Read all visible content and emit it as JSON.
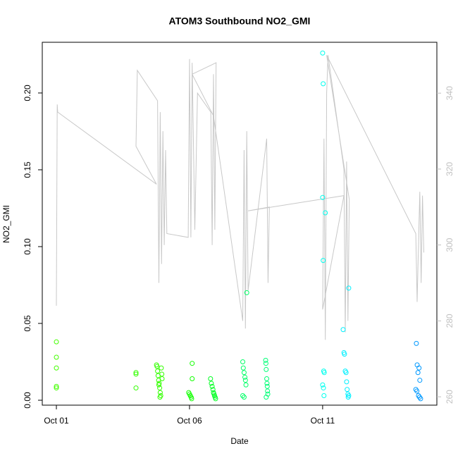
{
  "chart_data": {
    "type": "scatter",
    "title": "ATOM3 Southbound NO2_GMI",
    "x_label": "Date",
    "y_label": "NO2_GMI",
    "xlim": [
      -0.53,
      14.29
    ],
    "xticks": [
      {
        "value": 0,
        "label": "Oct 01"
      },
      {
        "value": 5,
        "label": "Oct 06"
      },
      {
        "value": 10,
        "label": "Oct 11"
      }
    ],
    "ylim": [
      -0.0032,
      0.233
    ],
    "yticks": [
      {
        "value": 0,
        "label": "0.00"
      },
      {
        "value": 0.05,
        "label": "0.05"
      },
      {
        "value": 0.1,
        "label": "0.10"
      },
      {
        "value": 0.15,
        "label": "0.15"
      },
      {
        "value": 0.2,
        "label": "0.20"
      }
    ],
    "y2lim": [
      257.8,
      353.4
    ],
    "y2ticks": [
      260,
      280,
      300,
      320,
      340
    ],
    "y2_color": "#c0c0c0",
    "x": [
      0,
      0,
      0,
      0,
      0,
      2.99,
      2.99,
      2.99,
      3.76,
      3.78,
      3.8,
      3.82,
      3.84,
      3.86,
      3.88,
      3.9,
      3.92,
      3.94,
      3.96,
      3.97,
      3.85,
      3.89,
      4.97,
      5.0,
      5.03,
      5.06,
      5.08,
      5.1,
      5.1,
      5.79,
      5.82,
      5.85,
      5.88,
      5.9,
      5.92,
      5.94,
      5.96,
      5.98,
      7.0,
      7.02,
      7.05,
      7.08,
      7.1,
      7.12,
      7.0,
      7.05,
      7.15,
      7.86,
      7.87,
      7.88,
      7.9,
      7.91,
      7.92,
      7.93,
      7.94,
      7.88,
      10.0,
      10.02,
      10.0,
      10.1,
      10.02,
      10.04,
      10.06,
      10.0,
      10.03,
      10.05,
      10.77,
      10.8,
      10.82,
      10.85,
      10.88,
      10.9,
      10.92,
      10.95,
      10.98,
      10.96,
      10.98,
      13.52,
      13.55,
      13.62,
      13.58,
      13.65,
      13.5,
      13.54,
      13.6,
      13.64,
      13.68
    ],
    "values": [
      0.038,
      0.028,
      0.021,
      0.009,
      0.008,
      0.018,
      0.017,
      0.008,
      0.023,
      0.022,
      0.019,
      0.016,
      0.013,
      0.011,
      0.008,
      0.005,
      0.003,
      0.021,
      0.017,
      0.014,
      0.01,
      0.002,
      0.005,
      0.004,
      0.003,
      0.002,
      0.001,
      0.024,
      0.014,
      0.014,
      0.011,
      0.009,
      0.007,
      0.005,
      0.004,
      0.003,
      0.002,
      0.001,
      0.025,
      0.021,
      0.018,
      0.015,
      0.013,
      0.01,
      0.003,
      0.002,
      0.07,
      0.026,
      0.024,
      0.02,
      0.014,
      0.011,
      0.009,
      0.006,
      0.004,
      0.002,
      0.226,
      0.206,
      0.132,
      0.122,
      0.091,
      0.019,
      0.018,
      0.01,
      0.008,
      0.003,
      0.046,
      0.031,
      0.03,
      0.019,
      0.018,
      0.012,
      0.007,
      0.004,
      0.003,
      0.002,
      0.073,
      0.037,
      0.023,
      0.021,
      0.018,
      0.013,
      0.007,
      0.006,
      0.003,
      0.002,
      0.001
    ],
    "colors": [
      "#44ff00",
      "#44ff00",
      "#44ff00",
      "#44ff00",
      "#44ff00",
      "#33ff00",
      "#33ff00",
      "#33ff00",
      "#33ff00",
      "#33ff00",
      "#33ff00",
      "#33ff00",
      "#33ff00",
      "#33ff00",
      "#33ff00",
      "#33ff00",
      "#33ff00",
      "#33ff00",
      "#33ff00",
      "#33ff00",
      "#33ff00",
      "#33ff00",
      "#11ff00",
      "#11ff00",
      "#11ff00",
      "#11ff00",
      "#11ff00",
      "#11ff00",
      "#11ff00",
      "#00ff22",
      "#00ff22",
      "#00ff22",
      "#00ff22",
      "#00ff22",
      "#00ff22",
      "#00ff22",
      "#00ff22",
      "#00ff22",
      "#00ff66",
      "#00ff66",
      "#00ff66",
      "#00ff66",
      "#00ff66",
      "#00ff66",
      "#00ff66",
      "#00ff66",
      "#00ff66",
      "#00ff77",
      "#00ff77",
      "#00ff77",
      "#00ff77",
      "#00ff77",
      "#00ff77",
      "#00ff77",
      "#00ff77",
      "#00ff77",
      "#00ffee",
      "#00ffee",
      "#00ffee",
      "#00ffee",
      "#00ffee",
      "#00ffee",
      "#00ffee",
      "#00ffee",
      "#00ffee",
      "#00ffee",
      "#00f0ff",
      "#00f0ff",
      "#00f0ff",
      "#00f0ff",
      "#00f0ff",
      "#00f0ff",
      "#00f0ff",
      "#00f0ff",
      "#00f0ff",
      "#00f0ff",
      "#00f0ff",
      "#0099ff",
      "#0099ff",
      "#0099ff",
      "#0099ff",
      "#0099ff",
      "#0099ff",
      "#0099ff",
      "#0099ff",
      "#0099ff",
      "#0099ff"
    ],
    "line": {
      "color": "#c8c8c8",
      "axis": "y2",
      "x": [
        0,
        0.03,
        0.05,
        3.76,
        2.99,
        3.04,
        3.8,
        3.85,
        3.9,
        3.95,
        4.0,
        4.05,
        4.1,
        4.15,
        4.95,
        5.0,
        5.05,
        5.1,
        5.2,
        5.3,
        5.8,
        5.85,
        5.9,
        5.95,
        6.0,
        5.1,
        5.9,
        7.0,
        7.05,
        7.1,
        7.15,
        7.2,
        7.9,
        7.95,
        8.0,
        7.2,
        10.8,
        10.0,
        10.05,
        10.1,
        10.15,
        10.2,
        10.8,
        10.85,
        10.9,
        10.95,
        11.0,
        10.15,
        13.5,
        13.55,
        13.6,
        13.65,
        13.7,
        13.75,
        13.8
      ],
      "values": [
        284,
        337,
        335,
        316,
        326,
        346,
        338,
        290,
        335,
        295,
        330,
        300,
        325,
        303,
        302,
        349,
        302,
        348,
        304,
        340,
        335,
        300,
        345,
        304,
        348,
        345,
        334,
        280,
        325,
        278,
        330,
        288,
        328,
        290,
        310,
        309,
        313,
        283,
        328,
        275,
        340,
        350,
        320,
        277,
        322,
        280,
        312,
        350,
        303,
        285,
        300,
        314,
        290,
        313,
        298
      ]
    }
  }
}
